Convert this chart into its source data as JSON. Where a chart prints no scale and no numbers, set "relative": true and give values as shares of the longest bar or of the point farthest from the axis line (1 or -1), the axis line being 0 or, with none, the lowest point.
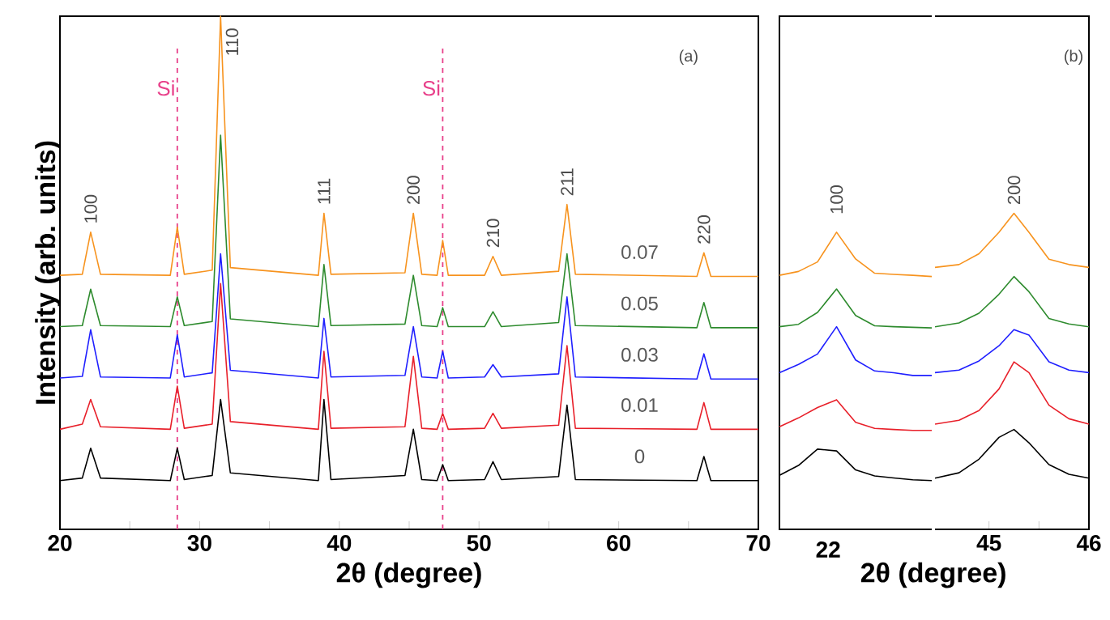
{
  "chart_data": [
    {
      "type": "line",
      "relative": true,
      "tick_labels": "x",
      "xlim": [
        20,
        70
      ],
      "xticks": [
        20,
        {
          "value": 25,
          "label": null
        },
        30,
        {
          "value": 35,
          "label": null
        },
        40,
        {
          "value": 45,
          "label": null
        },
        50,
        {
          "value": 55,
          "label": null
        },
        60,
        {
          "value": 65,
          "label": null
        },
        70
      ],
      "xlabel": "2θ (degree)",
      "ylabel": "Intensity (arb. units)",
      "x": [
        20,
        21.6,
        22.2,
        22.9,
        27.9,
        28.4,
        28.9,
        30.9,
        31.5,
        32.2,
        38.5,
        38.9,
        39.4,
        44.7,
        45.3,
        45.9,
        47.0,
        47.4,
        47.8,
        50.4,
        51.0,
        51.6,
        55.7,
        56.3,
        56.9,
        65.6,
        66.1,
        66.6,
        70
      ],
      "series": [
        {
          "name": "0",
          "color": "#000000",
          "values": [
            0.095,
            0.1,
            0.158,
            0.1,
            0.095,
            0.158,
            0.097,
            0.105,
            0.253,
            0.11,
            0.095,
            0.253,
            0.097,
            0.105,
            0.195,
            0.097,
            0.095,
            0.126,
            0.095,
            0.097,
            0.132,
            0.097,
            0.103,
            0.242,
            0.097,
            0.095,
            0.142,
            0.095,
            0.095
          ]
        },
        {
          "name": "0.01",
          "color": "#e8202a",
          "values": [
            0.195,
            0.205,
            0.253,
            0.2,
            0.195,
            0.279,
            0.197,
            0.205,
            0.479,
            0.21,
            0.195,
            0.347,
            0.197,
            0.2,
            0.337,
            0.197,
            0.195,
            0.226,
            0.195,
            0.197,
            0.226,
            0.197,
            0.203,
            0.358,
            0.197,
            0.195,
            0.247,
            0.195,
            0.195
          ]
        },
        {
          "name": "0.03",
          "color": "#1f1fff",
          "values": [
            0.295,
            0.298,
            0.389,
            0.297,
            0.295,
            0.379,
            0.297,
            0.305,
            0.537,
            0.31,
            0.295,
            0.411,
            0.297,
            0.3,
            0.395,
            0.297,
            0.295,
            0.347,
            0.295,
            0.297,
            0.321,
            0.297,
            0.303,
            0.453,
            0.297,
            0.293,
            0.342,
            0.293,
            0.293
          ]
        },
        {
          "name": "0.05",
          "color": "#2e8b2e",
          "values": [
            0.395,
            0.397,
            0.468,
            0.397,
            0.395,
            0.453,
            0.397,
            0.405,
            0.768,
            0.41,
            0.395,
            0.516,
            0.397,
            0.4,
            0.495,
            0.397,
            0.395,
            0.432,
            0.395,
            0.395,
            0.424,
            0.395,
            0.403,
            0.537,
            0.397,
            0.393,
            0.442,
            0.393,
            0.393
          ]
        },
        {
          "name": "0.07",
          "color": "#f7931e",
          "values": [
            0.495,
            0.497,
            0.579,
            0.497,
            0.495,
            0.589,
            0.497,
            0.505,
            1.0,
            0.51,
            0.495,
            0.616,
            0.497,
            0.5,
            0.616,
            0.497,
            0.495,
            0.563,
            0.495,
            0.495,
            0.532,
            0.495,
            0.503,
            0.633,
            0.497,
            0.493,
            0.539,
            0.493,
            0.493
          ]
        }
      ],
      "ref_lines": [
        {
          "axis": "x",
          "value": 28.4,
          "label": "Si",
          "color": "#e8408a",
          "line_style": "dashed"
        },
        {
          "axis": "x",
          "value": 47.4,
          "label": "Si",
          "color": "#e8408a",
          "line_style": "dashed"
        }
      ],
      "annotations": [
        "(a)",
        {
          "text": "100",
          "x": 22.2,
          "y": 0.579
        },
        {
          "text": "110",
          "x": 31.5,
          "y": 1.0
        },
        {
          "text": "111",
          "x": 38.9,
          "y": 0.616
        },
        {
          "text": "200",
          "x": 45.3,
          "y": 0.616
        },
        {
          "text": "210",
          "x": 51.0,
          "y": 0.532
        },
        {
          "text": "211",
          "x": 56.3,
          "y": 0.633
        },
        {
          "text": "220",
          "x": 66.1,
          "y": 0.539
        }
      ]
    },
    {
      "type": "line",
      "relative": true,
      "tick_labels": false,
      "categories": [
        null,
        null,
        null,
        null,
        null,
        null,
        null,
        null,
        null
      ],
      "series": [
        {
          "color": "#000000",
          "values": [
            0.182,
            0.215,
            0.27,
            0.264,
            0.2,
            0.18,
            0.173,
            0.167,
            0.164
          ]
        },
        {
          "color": "#e8202a",
          "values": [
            0.345,
            0.375,
            0.41,
            0.436,
            0.36,
            0.34,
            0.336,
            0.333,
            0.333
          ]
        },
        {
          "color": "#1f1fff",
          "values": [
            0.527,
            0.555,
            0.59,
            0.682,
            0.57,
            0.533,
            0.527,
            0.518,
            0.518
          ]
        },
        {
          "color": "#2e8b2e",
          "values": [
            0.682,
            0.69,
            0.73,
            0.809,
            0.72,
            0.685,
            0.682,
            0.68,
            0.678
          ]
        },
        {
          "color": "#f7931e",
          "values": [
            0.855,
            0.868,
            0.9,
            1.0,
            0.91,
            0.862,
            0.858,
            0.855,
            0.851
          ]
        }
      ],
      "annotations": [
        "22",
        "100"
      ]
    },
    {
      "type": "line",
      "relative": true,
      "tick_labels": "x",
      "xlim": [
        44.46,
        46.0
      ],
      "xticks": [
        45,
        {
          "value": 45.5,
          "label": null
        },
        46
      ],
      "xlabel": "2θ (degree)",
      "x": [
        44.46,
        44.7,
        44.9,
        45.1,
        45.25,
        45.4,
        45.6,
        45.8,
        46.0
      ],
      "series": [
        {
          "color": "#000000",
          "values": [
            0.162,
            0.179,
            0.222,
            0.291,
            0.316,
            0.274,
            0.205,
            0.174,
            0.162
          ]
        },
        {
          "color": "#e8202a",
          "values": [
            0.333,
            0.345,
            0.376,
            0.444,
            0.53,
            0.496,
            0.393,
            0.35,
            0.333
          ]
        },
        {
          "color": "#1f1fff",
          "values": [
            0.496,
            0.504,
            0.533,
            0.581,
            0.632,
            0.615,
            0.53,
            0.504,
            0.496
          ]
        },
        {
          "color": "#2e8b2e",
          "values": [
            0.641,
            0.653,
            0.684,
            0.744,
            0.8,
            0.752,
            0.667,
            0.65,
            0.641
          ]
        },
        {
          "color": "#f7931e",
          "values": [
            0.829,
            0.838,
            0.872,
            0.94,
            1.0,
            0.94,
            0.855,
            0.838,
            0.829
          ]
        }
      ],
      "annotations": [
        "(b)",
        {
          "text": "200",
          "x": 45.25,
          "y": 1.0
        }
      ]
    }
  ]
}
